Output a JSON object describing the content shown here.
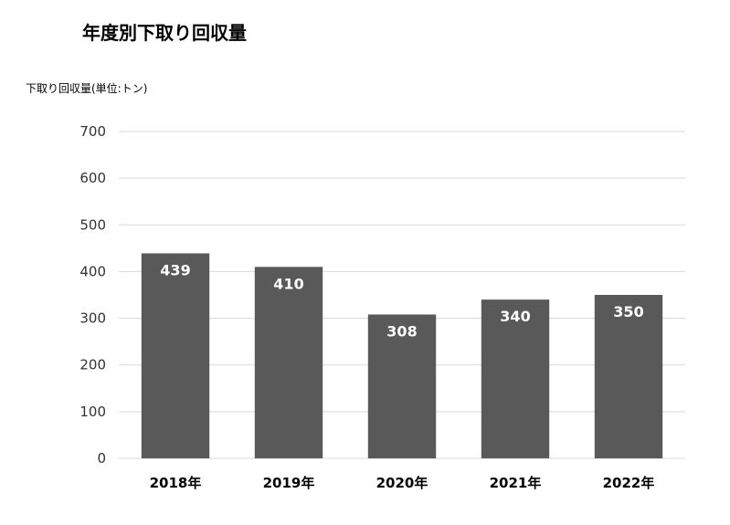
{
  "chart_data": {
    "type": "bar",
    "title": "年度別下取り回収量",
    "ylabel": "下取り回収量(単位:トン)",
    "xlabel": "",
    "categories": [
      "2018年",
      "2019年",
      "2020年",
      "2021年",
      "2022年"
    ],
    "values": [
      439,
      410,
      308,
      340,
      350
    ],
    "data_labels": [
      "439",
      "410",
      "308",
      "340",
      "350"
    ],
    "y_ticks": [
      "0",
      "100",
      "200",
      "300",
      "400",
      "500",
      "600",
      "700"
    ],
    "ylim": [
      0,
      700
    ],
    "grid": true,
    "bar_color": "#595959",
    "grid_color": "#d9d9d9",
    "label_color": "#ffffff"
  }
}
